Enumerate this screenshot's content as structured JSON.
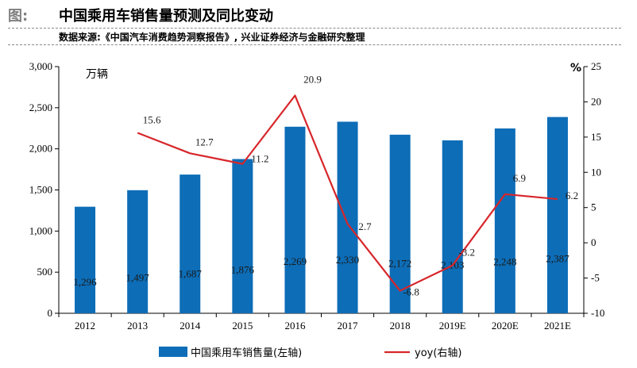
{
  "header": {
    "fig_label": "图:",
    "title": "中国乘用车销售量预测及同比变动",
    "source": "数据来源:《中国汽车消费趋势洞察报告》, 兴业证券经济与金融研究整理"
  },
  "colors": {
    "bar": "#0d6db7",
    "line": "#d7262b",
    "axis": "#000000",
    "header_dash": "#8a8a8a"
  },
  "chart_data": {
    "type": "bar+line",
    "categories": [
      "2012",
      "2013",
      "2014",
      "2015",
      "2016",
      "2017",
      "2018",
      "2019E",
      "2020E",
      "2021E"
    ],
    "left_axis": {
      "unit_label": "万辆",
      "range": [
        0,
        3000
      ],
      "ticks": [
        "0",
        "500",
        "1,000",
        "1,500",
        "2,000",
        "2,500",
        "3,000"
      ]
    },
    "right_axis": {
      "unit_label": "%",
      "range": [
        -10,
        25
      ],
      "ticks": [
        "-10",
        "-5",
        "0",
        "5",
        "10",
        "15",
        "20",
        "25"
      ]
    },
    "series": [
      {
        "name": "中国乘用车销售量(左轴)",
        "type": "bar",
        "axis": "left",
        "values": [
          1296,
          1497,
          1687,
          1876,
          2269,
          2330,
          2172,
          2103,
          2248,
          2387
        ],
        "labels": [
          "1,296",
          "1,497",
          "1,687",
          "1,876",
          "2,269",
          "2,330",
          "2,172",
          "2,103",
          "2,248",
          "2,387"
        ]
      },
      {
        "name": "yoy(右轴)",
        "type": "line",
        "axis": "right",
        "x": [
          "2013",
          "2014",
          "2015",
          "2016",
          "2017",
          "2018",
          "2019E",
          "2020E",
          "2021E"
        ],
        "values": [
          15.6,
          12.7,
          11.2,
          20.9,
          2.7,
          -6.8,
          -3.2,
          6.9,
          6.2
        ],
        "labels": [
          "15.6",
          "12.7",
          "11.2",
          "20.9",
          "2.7",
          "-6.8",
          "-3.2",
          "6.9",
          "6.2"
        ]
      }
    ],
    "grid": false,
    "legend_position": "bottom"
  }
}
